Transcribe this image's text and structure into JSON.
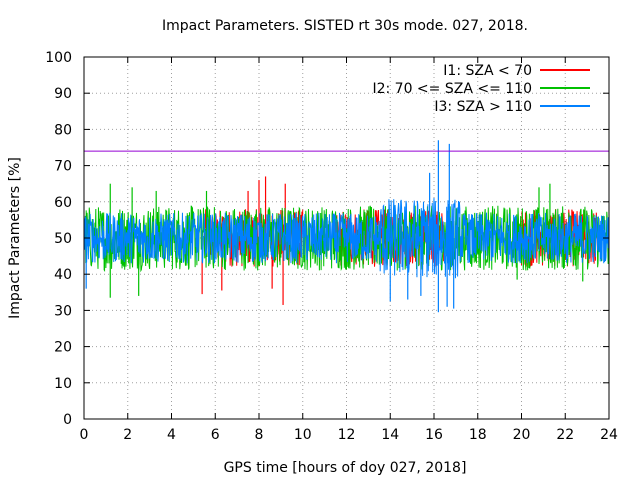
{
  "chart_data": {
    "type": "line",
    "title": "Impact Parameters. SISTED rt 30s mode. 027, 2018.",
    "xlabel": "GPS time [hours of doy 027, 2018]",
    "ylabel": "Impact Parameters [%]",
    "xlim": [
      0,
      24
    ],
    "ylim": [
      0,
      100
    ],
    "x_ticks": [
      0,
      2,
      4,
      6,
      8,
      10,
      12,
      14,
      16,
      18,
      20,
      22,
      24
    ],
    "y_ticks": [
      0,
      10,
      20,
      30,
      40,
      50,
      60,
      70,
      80,
      90,
      100
    ],
    "grid": true,
    "legend_position": "top-right",
    "threshold_line": {
      "y": 74,
      "color": "#9400d3"
    },
    "series": [
      {
        "name": "I1: SZA < 70",
        "color": "#ff0000",
        "active_hours": [
          [
            5.5,
            10.0
          ],
          [
            11.5,
            14.0
          ],
          [
            14.0,
            16.5
          ],
          [
            20.0,
            23.5
          ]
        ],
        "center": 50,
        "typical_range": [
          42,
          58
        ],
        "extremes": [
          {
            "x": 5.4,
            "y": 34.5
          },
          {
            "x": 6.3,
            "y": 35.5
          },
          {
            "x": 8.0,
            "y": 66
          },
          {
            "x": 8.3,
            "y": 67
          },
          {
            "x": 8.6,
            "y": 36
          },
          {
            "x": 9.1,
            "y": 31.5
          },
          {
            "x": 9.2,
            "y": 65
          },
          {
            "x": 7.5,
            "y": 63
          }
        ]
      },
      {
        "name": "I2: 70 <= SZA <= 110",
        "color": "#00c000",
        "active_hours": [
          [
            0,
            24
          ]
        ],
        "center": 50,
        "typical_range": [
          41,
          59
        ],
        "extremes": [
          {
            "x": 1.2,
            "y": 65
          },
          {
            "x": 1.2,
            "y": 33.5
          },
          {
            "x": 2.2,
            "y": 64
          },
          {
            "x": 2.5,
            "y": 34
          },
          {
            "x": 3.3,
            "y": 63
          },
          {
            "x": 5.6,
            "y": 63
          },
          {
            "x": 20.8,
            "y": 64
          },
          {
            "x": 21.3,
            "y": 65
          },
          {
            "x": 19.8,
            "y": 38.5
          },
          {
            "x": 22.8,
            "y": 38
          }
        ]
      },
      {
        "name": "I3: SZA > 110",
        "color": "#0080ff",
        "active_hours": [
          [
            0,
            24
          ]
        ],
        "center": 50,
        "typical_range": [
          43,
          57
        ],
        "extremes": [
          {
            "x": 16.2,
            "y": 77
          },
          {
            "x": 16.7,
            "y": 76
          },
          {
            "x": 16.2,
            "y": 29.5
          },
          {
            "x": 16.6,
            "y": 31
          },
          {
            "x": 14.0,
            "y": 32.5
          },
          {
            "x": 14.8,
            "y": 33
          },
          {
            "x": 15.4,
            "y": 34
          },
          {
            "x": 15.8,
            "y": 68
          },
          {
            "x": 16.9,
            "y": 30.5
          },
          {
            "x": 0.1,
            "y": 36
          }
        ]
      }
    ]
  }
}
